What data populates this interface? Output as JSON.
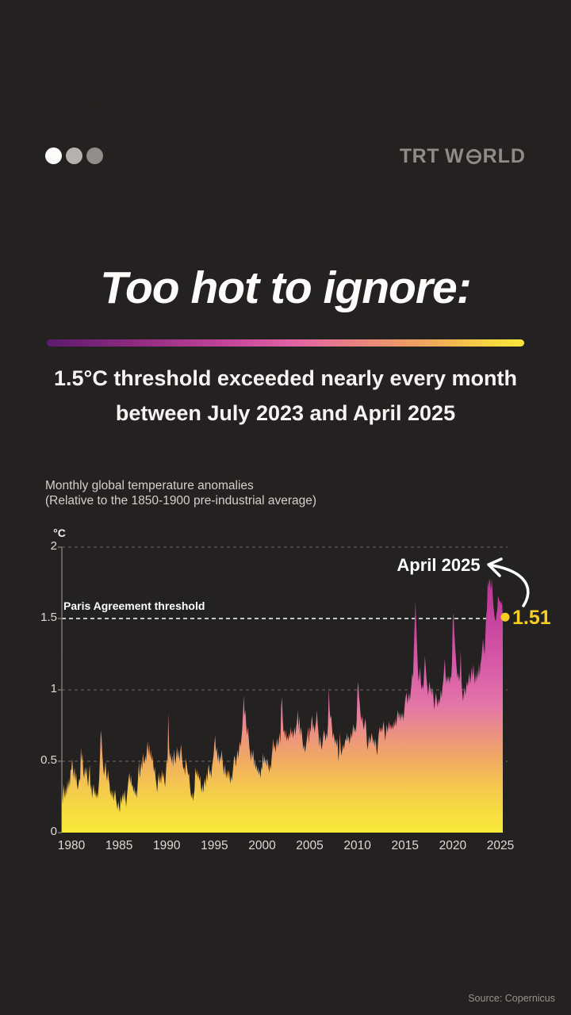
{
  "header": {
    "dots": [
      "#fcfbf9",
      "#b4b1ae",
      "#918e8b"
    ],
    "logo": {
      "trt": "TRT",
      "w": "W",
      "rld": "RLD"
    }
  },
  "title": "Too hot to ignore:",
  "subtitle": {
    "line1": "1.5°C threshold exceeded nearly every month",
    "line2": "between July 2023 and April 2025"
  },
  "footer": {
    "source": "Source: Copernicus"
  },
  "accent_colors": {
    "yellow": "#f8ce24",
    "magenta_top": "#b02b91",
    "area_bottom_yellow": "#f9ea39",
    "background": "#201e1d"
  },
  "chart_data": {
    "type": "area",
    "title": "Monthly global temperature anomalies",
    "subtitle": "(Relative to the 1850-1900 pre-industrial average)",
    "unit": "°C",
    "x_start": "1979-01",
    "x_end": "2025-04",
    "ylim": [
      0,
      2
    ],
    "grid": true,
    "y_ticks": [
      "2",
      "1.5",
      "1",
      "0.5",
      "0"
    ],
    "y_tick_values": [
      2,
      1.5,
      1,
      0.5,
      0
    ],
    "x_ticks": [
      "1980",
      "1985",
      "1990",
      "1995",
      "2000",
      "2005",
      "2010",
      "2015",
      "2020",
      "2025"
    ],
    "threshold": {
      "value": 1.5,
      "label": "Paris Agreement threshold"
    },
    "annotation": {
      "label": "April 2025",
      "value": 1.51,
      "value_label": "1.51"
    },
    "values": [
      0.28,
      0.2,
      0.34,
      0.28,
      0.24,
      0.32,
      0.26,
      0.36,
      0.3,
      0.38,
      0.32,
      0.44,
      0.44,
      0.52,
      0.44,
      0.38,
      0.46,
      0.36,
      0.42,
      0.34,
      0.3,
      0.34,
      0.38,
      0.36,
      0.6,
      0.5,
      0.56,
      0.42,
      0.38,
      0.46,
      0.4,
      0.46,
      0.38,
      0.32,
      0.4,
      0.48,
      0.3,
      0.34,
      0.24,
      0.3,
      0.34,
      0.26,
      0.3,
      0.24,
      0.28,
      0.24,
      0.3,
      0.38,
      0.54,
      0.72,
      0.66,
      0.54,
      0.46,
      0.4,
      0.44,
      0.5,
      0.4,
      0.36,
      0.44,
      0.38,
      0.34,
      0.26,
      0.3,
      0.24,
      0.3,
      0.22,
      0.26,
      0.3,
      0.24,
      0.2,
      0.16,
      0.22,
      0.18,
      0.14,
      0.26,
      0.2,
      0.24,
      0.28,
      0.22,
      0.3,
      0.24,
      0.18,
      0.26,
      0.32,
      0.38,
      0.42,
      0.34,
      0.4,
      0.32,
      0.34,
      0.28,
      0.32,
      0.26,
      0.3,
      0.24,
      0.3,
      0.4,
      0.5,
      0.38,
      0.44,
      0.5,
      0.44,
      0.56,
      0.5,
      0.48,
      0.54,
      0.5,
      0.58,
      0.64,
      0.54,
      0.62,
      0.52,
      0.58,
      0.5,
      0.54,
      0.48,
      0.42,
      0.46,
      0.38,
      0.34,
      0.28,
      0.36,
      0.42,
      0.34,
      0.4,
      0.34,
      0.44,
      0.38,
      0.42,
      0.36,
      0.32,
      0.42,
      0.52,
      0.48,
      0.84,
      0.6,
      0.52,
      0.56,
      0.48,
      0.54,
      0.46,
      0.58,
      0.52,
      0.48,
      0.54,
      0.6,
      0.52,
      0.58,
      0.5,
      0.56,
      0.62,
      0.54,
      0.48,
      0.44,
      0.46,
      0.4,
      0.52,
      0.48,
      0.44,
      0.4,
      0.42,
      0.34,
      0.28,
      0.24,
      0.28,
      0.22,
      0.26,
      0.3,
      0.46,
      0.4,
      0.44,
      0.38,
      0.42,
      0.36,
      0.4,
      0.32,
      0.28,
      0.34,
      0.28,
      0.34,
      0.38,
      0.32,
      0.42,
      0.36,
      0.44,
      0.48,
      0.4,
      0.44,
      0.38,
      0.46,
      0.5,
      0.54,
      0.62,
      0.68,
      0.56,
      0.6,
      0.5,
      0.56,
      0.48,
      0.54,
      0.5,
      0.58,
      0.52,
      0.46,
      0.4,
      0.48,
      0.42,
      0.38,
      0.44,
      0.38,
      0.44,
      0.4,
      0.34,
      0.4,
      0.36,
      0.42,
      0.48,
      0.54,
      0.52,
      0.46,
      0.52,
      0.58,
      0.52,
      0.58,
      0.64,
      0.6,
      0.66,
      0.72,
      0.84,
      0.96,
      0.82,
      0.86,
      0.76,
      0.68,
      0.74,
      0.68,
      0.6,
      0.56,
      0.5,
      0.58,
      0.52,
      0.58,
      0.46,
      0.52,
      0.44,
      0.48,
      0.42,
      0.46,
      0.4,
      0.44,
      0.38,
      0.46,
      0.44,
      0.56,
      0.48,
      0.54,
      0.48,
      0.52,
      0.46,
      0.52,
      0.46,
      0.42,
      0.48,
      0.44,
      0.52,
      0.58,
      0.66,
      0.58,
      0.62,
      0.56,
      0.62,
      0.66,
      0.6,
      0.64,
      0.7,
      0.62,
      0.88,
      0.95,
      0.8,
      0.7,
      0.72,
      0.66,
      0.72,
      0.64,
      0.68,
      0.64,
      0.7,
      0.66,
      0.74,
      0.68,
      0.72,
      0.66,
      0.7,
      0.74,
      0.68,
      0.74,
      0.78,
      0.86,
      0.72,
      0.82,
      0.68,
      0.74,
      0.7,
      0.64,
      0.58,
      0.62,
      0.56,
      0.6,
      0.64,
      0.68,
      0.74,
      0.62,
      0.74,
      0.7,
      0.78,
      0.82,
      0.72,
      0.76,
      0.7,
      0.74,
      0.78,
      0.86,
      0.76,
      0.7,
      0.6,
      0.68,
      0.62,
      0.58,
      0.62,
      0.68,
      0.72,
      0.68,
      0.64,
      0.7,
      0.66,
      0.76,
      1.02,
      0.86,
      0.8,
      0.82,
      0.74,
      0.66,
      0.7,
      0.66,
      0.62,
      0.66,
      0.6,
      0.66,
      0.5,
      0.56,
      0.7,
      0.58,
      0.54,
      0.58,
      0.62,
      0.58,
      0.62,
      0.66,
      0.64,
      0.7,
      0.64,
      0.68,
      0.62,
      0.66,
      0.7,
      0.66,
      0.72,
      0.76,
      0.7,
      0.74,
      0.7,
      0.78,
      1.0,
      1.06,
      0.96,
      0.9,
      0.82,
      0.78,
      0.82,
      0.76,
      0.72,
      0.76,
      0.8,
      0.74,
      0.62,
      0.58,
      0.64,
      0.68,
      0.62,
      0.66,
      0.7,
      0.66,
      0.62,
      0.66,
      0.6,
      0.66,
      0.58,
      0.54,
      0.64,
      0.7,
      0.74,
      0.7,
      0.74,
      0.7,
      0.74,
      0.78,
      0.72,
      0.64,
      0.7,
      0.76,
      0.7,
      0.74,
      0.78,
      0.72,
      0.76,
      0.72,
      0.76,
      0.72,
      0.78,
      0.74,
      0.8,
      0.74,
      0.82,
      0.86,
      0.8,
      0.84,
      0.78,
      0.84,
      0.8,
      0.84,
      0.78,
      0.86,
      0.92,
      0.96,
      0.98,
      0.9,
      0.94,
      0.98,
      0.92,
      0.98,
      1.04,
      1.12,
      1.08,
      1.28,
      1.46,
      1.62,
      1.48,
      1.32,
      1.16,
      1.06,
      1.1,
      1.16,
      1.04,
      1.0,
      1.04,
      1.0,
      1.12,
      1.24,
      1.16,
      1.08,
      1.02,
      0.96,
      1.02,
      1.06,
      0.98,
      1.02,
      0.96,
      1.02,
      0.92,
      0.86,
      0.94,
      0.98,
      0.92,
      0.88,
      0.94,
      0.9,
      0.94,
      1.0,
      0.94,
      1.02,
      1.06,
      1.14,
      1.22,
      1.1,
      1.04,
      1.1,
      1.06,
      1.1,
      1.04,
      1.1,
      1.08,
      1.18,
      1.5,
      1.54,
      1.4,
      1.3,
      1.22,
      1.14,
      1.08,
      1.12,
      1.06,
      1.1,
      1.28,
      1.06,
      0.98,
      0.92,
      0.98,
      1.02,
      0.96,
      1.02,
      1.06,
      1.02,
      1.08,
      1.12,
      1.04,
      1.1,
      1.16,
      1.08,
      1.18,
      1.1,
      1.04,
      1.12,
      1.06,
      1.14,
      1.08,
      1.18,
      1.1,
      1.18,
      1.22,
      1.28,
      1.36,
      1.3,
      1.24,
      1.38,
      1.52,
      1.56,
      1.76,
      1.72,
      1.78,
      1.76,
      1.7,
      1.78,
      1.7,
      1.6,
      1.54,
      1.5,
      1.48,
      1.53,
      1.56,
      1.66,
      1.64,
      1.62,
      1.62,
      1.6,
      1.62,
      1.51
    ],
    "legend": null,
    "source": "Source: Copernicus"
  }
}
